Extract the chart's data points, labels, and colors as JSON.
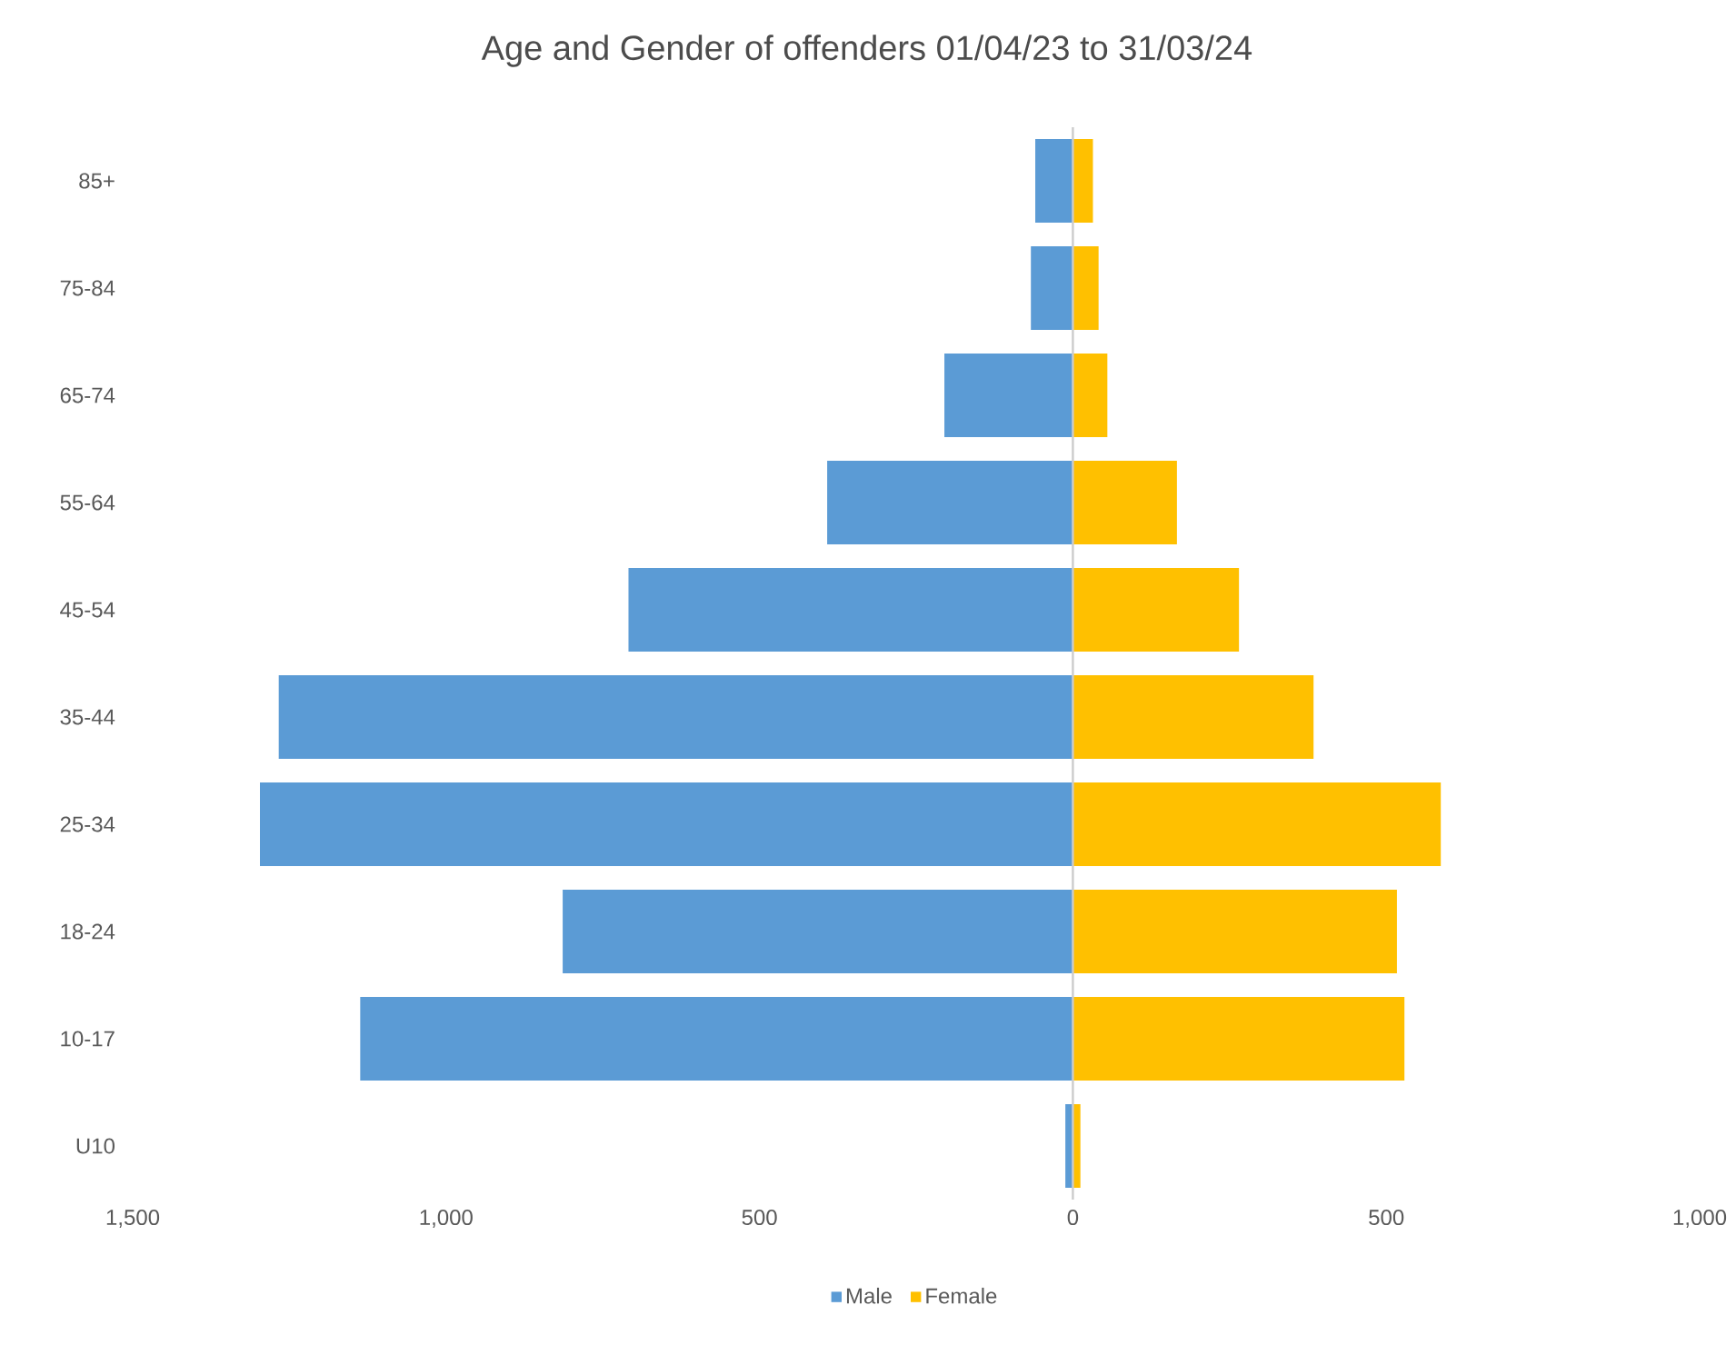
{
  "chart_data": {
    "type": "bar",
    "orientation": "horizontal",
    "title": "Age and Gender of offenders 01/04/23 to 31/03/24",
    "categories": [
      "85+",
      "75-84",
      "65-74",
      "55-64",
      "45-54",
      "35-44",
      "25-34",
      "18-24",
      "10-17",
      "U10"
    ],
    "series": [
      {
        "name": "Male",
        "color": "#5b9bd5",
        "values": [
          -60,
          -67,
          -205,
          -392,
          -709,
          -1267,
          -1297,
          -814,
          -1137,
          -12
        ]
      },
      {
        "name": "Female",
        "color": "#ffc000",
        "values": [
          32,
          41,
          55,
          166,
          265,
          384,
          587,
          517,
          529,
          12
        ]
      }
    ],
    "xlim": [
      -1500,
      1000
    ],
    "xticks": [
      {
        "value": -1500,
        "label": "1,500"
      },
      {
        "value": -1000,
        "label": "1,000"
      },
      {
        "value": -500,
        "label": "500"
      },
      0,
      500,
      {
        "value": 1000,
        "label": "1,000"
      }
    ],
    "legend": "bottom",
    "stacked": true
  }
}
